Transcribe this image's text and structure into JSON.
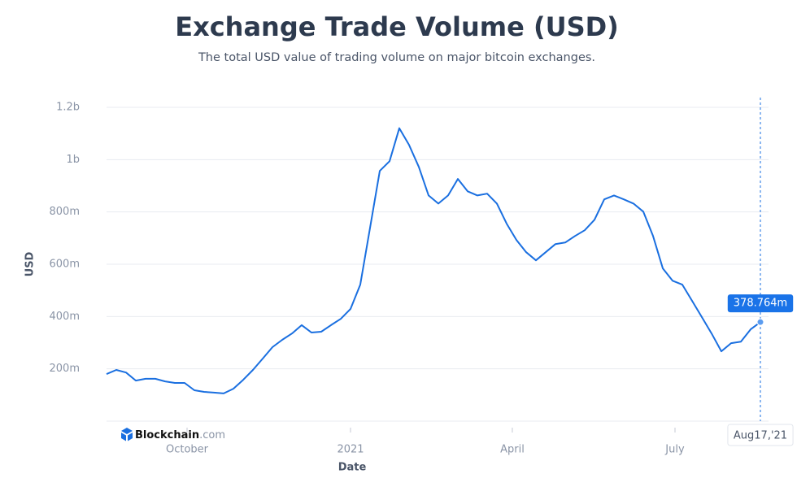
{
  "chart_data": {
    "type": "line",
    "title": "Exchange Trade Volume (USD)",
    "subtitle": "The total USD value of trading volume on major bitcoin exchanges.",
    "x_label": "Date",
    "y_label": "USD",
    "logo": {
      "name": "Blockchain",
      "suffix": ".com"
    },
    "color": "#1a6fe0",
    "values": [
      180000000,
      196000000,
      186000000,
      155000000,
      162000000,
      162000000,
      152000000,
      146000000,
      146000000,
      118000000,
      112000000,
      109000000,
      106000000,
      124000000,
      158000000,
      196000000,
      239000000,
      283000000,
      311000000,
      335000000,
      367000000,
      339000000,
      342000000,
      367000000,
      391000000,
      429000000,
      522000000,
      739000000,
      957000000,
      994000000,
      1120000000,
      1056000000,
      972000000,
      863000000,
      832000000,
      863000000,
      926000000,
      879000000,
      863000000,
      870000000,
      832000000,
      755000000,
      693000000,
      646000000,
      615000000,
      646000000,
      677000000,
      683000000,
      708000000,
      730000000,
      770000000,
      848000000,
      863000000,
      848000000,
      832000000,
      801000000,
      708000000,
      584000000,
      537000000,
      522000000,
      460000000,
      398000000,
      335000000,
      267000000,
      298000000,
      304000000,
      351000000,
      378764000
    ],
    "value_labels": [
      null,
      null,
      null,
      null,
      null,
      null,
      null,
      null,
      null,
      null,
      null,
      null,
      null,
      null,
      null,
      null,
      null,
      null,
      null,
      null,
      null,
      null,
      null,
      null,
      null,
      null,
      null,
      null,
      null,
      null,
      null,
      null,
      null,
      null,
      null,
      null,
      null,
      null,
      null,
      null,
      null,
      null,
      null,
      null,
      null,
      null,
      null,
      null,
      null,
      null,
      null,
      null,
      null,
      null,
      null,
      null,
      null,
      null,
      null,
      null,
      null,
      null,
      null,
      null,
      null,
      null,
      null,
      "378.764m"
    ],
    "xlim": [
      0,
      67
    ],
    "xticks": [
      {
        "value": 8.25,
        "label": "October"
      },
      {
        "value": 25,
        "label": "2021"
      },
      {
        "value": 41.58,
        "label": "April"
      },
      {
        "value": 58.25,
        "label": "July"
      },
      {
        "value": 67,
        "label": "Aug17,'21"
      }
    ],
    "ylim": [
      0,
      1200000000
    ],
    "yticks": [
      {
        "value": 200000000,
        "label": "200m"
      },
      {
        "value": 400000000,
        "label": "400m"
      },
      {
        "value": 600000000,
        "label": "600m"
      },
      {
        "value": 800000000,
        "label": "800m"
      },
      {
        "value": 1000000000,
        "label": "1b"
      },
      {
        "value": 1200000000,
        "label": "1.2b"
      }
    ],
    "grid": true
  }
}
